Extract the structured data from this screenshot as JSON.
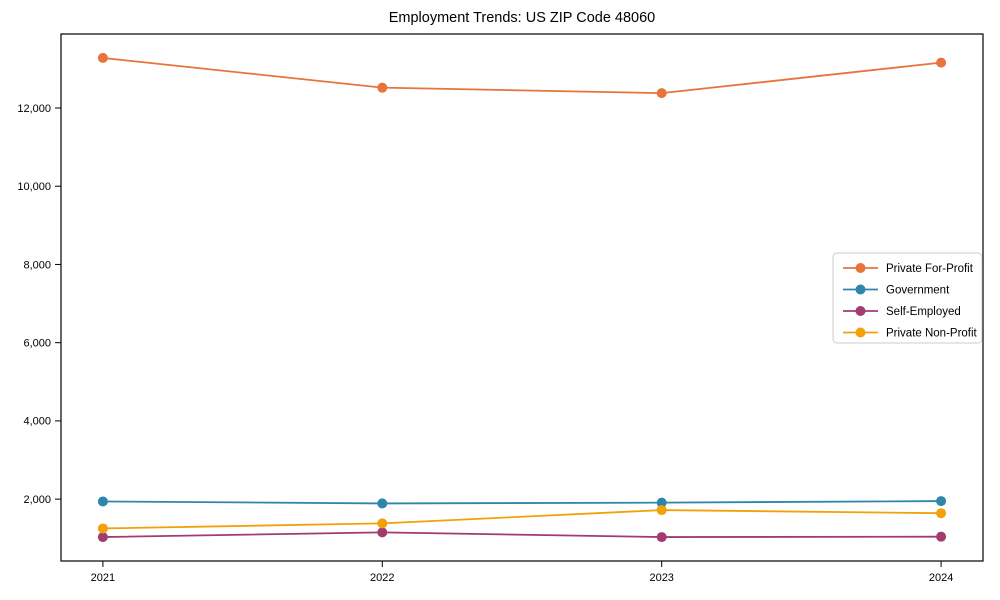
{
  "chart_data": {
    "type": "line",
    "title": "Employment Trends: US ZIP Code 48060",
    "x": [
      2021,
      2022,
      2023,
      2024
    ],
    "x_tick_labels": [
      "2021",
      "2022",
      "2023",
      "2024"
    ],
    "series": [
      {
        "name": "Private For-Profit",
        "color": "#E8743B",
        "values": [
          13280,
          12520,
          12380,
          13160
        ]
      },
      {
        "name": "Government",
        "color": "#2E86AB",
        "values": [
          1940,
          1890,
          1910,
          1950
        ]
      },
      {
        "name": "Self-Employed",
        "color": "#A23B72",
        "values": [
          1030,
          1150,
          1030,
          1040
        ]
      },
      {
        "name": "Private Non-Profit",
        "color": "#F1A208",
        "values": [
          1250,
          1380,
          1720,
          1640
        ]
      }
    ],
    "yticks": [
      2000,
      4000,
      6000,
      8000,
      10000,
      12000
    ],
    "ytick_labels": [
      "2,000",
      "4,000",
      "6,000",
      "8,000",
      "10,000",
      "12,000"
    ],
    "xlim": [
      2020.85,
      2024.15
    ],
    "ylim": [
      418,
      13892
    ],
    "grid": false,
    "legend_position": "center right",
    "marker": "o",
    "axis_color": "#000000",
    "legend_border_color": "#cccccc",
    "legend_background": "#ffffff"
  }
}
